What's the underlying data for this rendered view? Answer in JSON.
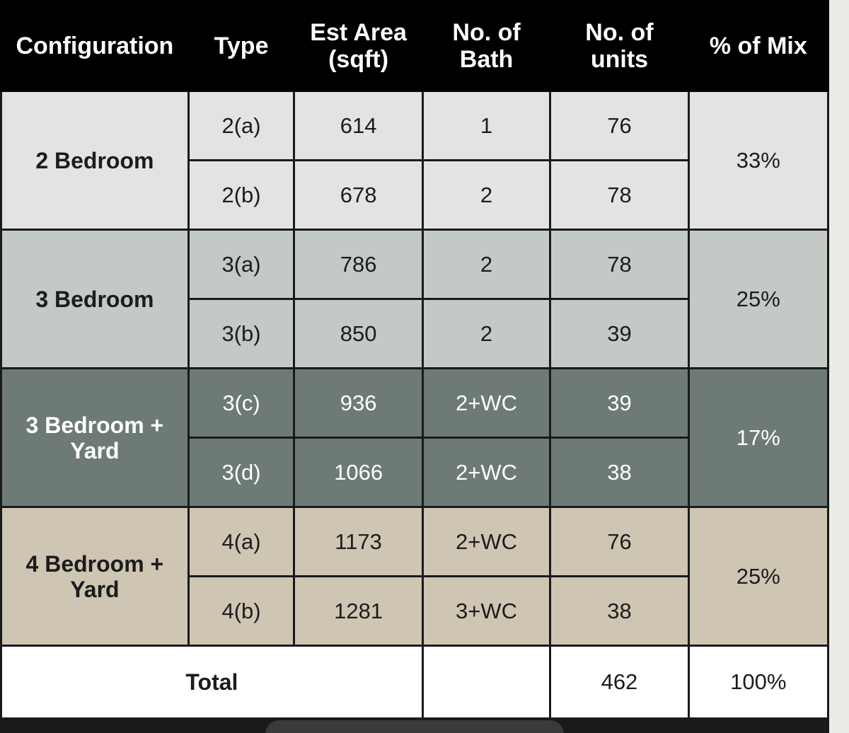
{
  "headers": {
    "configuration": "Configuration",
    "type": "Type",
    "area_line1": "Est Area",
    "area_line2": "(sqft)",
    "bath_line1": "No. of",
    "bath_line2": "Bath",
    "units_line1": "No. of",
    "units_line2": "units",
    "mix": "% of Mix"
  },
  "groups": [
    {
      "config": "2 Bedroom",
      "mix": "33%",
      "rows": [
        {
          "type": "2(a)",
          "area": "614",
          "bath": "1",
          "units": "76"
        },
        {
          "type": "2(b)",
          "area": "678",
          "bath": "2",
          "units": "78"
        }
      ]
    },
    {
      "config": "3 Bedroom",
      "mix": "25%",
      "rows": [
        {
          "type": "3(a)",
          "area": "786",
          "bath": "2",
          "units": "78"
        },
        {
          "type": "3(b)",
          "area": "850",
          "bath": "2",
          "units": "39"
        }
      ]
    },
    {
      "config_line1": "3 Bedroom +",
      "config_line2": "Yard",
      "mix": "17%",
      "rows": [
        {
          "type": "3(c)",
          "area": "936",
          "bath": "2+WC",
          "units": "39"
        },
        {
          "type": "3(d)",
          "area": "1066",
          "bath": "2+WC",
          "units": "38"
        }
      ]
    },
    {
      "config_line1": "4 Bedroom +",
      "config_line2": "Yard",
      "mix": "25%",
      "rows": [
        {
          "type": "4(a)",
          "area": "1173",
          "bath": "2+WC",
          "units": "76"
        },
        {
          "type": "4(b)",
          "area": "1281",
          "bath": "3+WC",
          "units": "38"
        }
      ]
    }
  ],
  "total": {
    "label": "Total",
    "bath": "",
    "units": "462",
    "mix": "100%"
  },
  "colors": {
    "header_bg": "#000000",
    "two_bedroom_bg": "#e2e3e2",
    "three_bedroom_bg": "#c3c9c5",
    "three_bedroom_yard_bg": "#6e7a76",
    "four_bedroom_yard_bg": "#cec6b3",
    "total_bg": "#ffffff"
  }
}
